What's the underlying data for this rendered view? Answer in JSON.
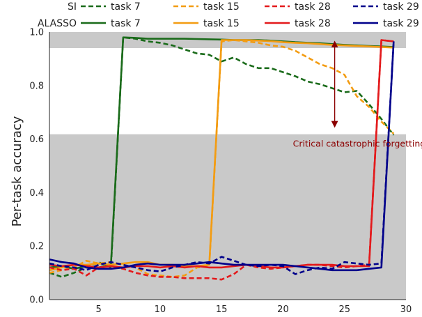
{
  "chart_data": {
    "type": "line",
    "ylabel": "Per-task accuracy",
    "xlabel": "",
    "xlim": [
      1,
      30
    ],
    "ylim": [
      0,
      1.0
    ],
    "xticks": [
      5,
      10,
      15,
      20,
      25,
      30
    ],
    "yticks": [
      0.0,
      0.2,
      0.4,
      0.6,
      0.8,
      1.0
    ],
    "ytick_labels": [
      "0.0",
      "0.2",
      "0.4",
      "0.6",
      "0.8",
      "1.0"
    ],
    "legend": {
      "placement": "top",
      "row_labels": [
        "SI",
        "ALASSO"
      ]
    },
    "bands": [
      {
        "y0": 0.0,
        "y1": 0.618,
        "color": "#c9c9c9"
      },
      {
        "y0": 0.94,
        "y1": 1.0,
        "color": "#c9c9c9"
      }
    ],
    "annotation": {
      "text": "Critical catastrophic forgetting",
      "color": "#8b0000",
      "arrow_x": 24.2,
      "arrow_y": [
        0.655,
        0.955
      ],
      "text_x": 26.2,
      "text_y": 0.572
    },
    "series": [
      {
        "name": "task 7",
        "group": "SI",
        "style": "dashed",
        "color": "#1a6b1a",
        "x": [
          1,
          2,
          3,
          4,
          5,
          6,
          7,
          8,
          9,
          10,
          11,
          12,
          13,
          14,
          15,
          16,
          17,
          18,
          19,
          20,
          21,
          22,
          23,
          24,
          25,
          26,
          27,
          28,
          29
        ],
        "y": [
          0.1,
          0.085,
          0.1,
          0.12,
          0.14,
          0.12,
          0.98,
          0.975,
          0.965,
          0.96,
          0.95,
          0.935,
          0.92,
          0.915,
          0.89,
          0.905,
          0.88,
          0.865,
          0.865,
          0.85,
          0.835,
          0.815,
          0.805,
          0.79,
          0.775,
          0.78,
          0.73,
          0.675,
          0.615
        ]
      },
      {
        "name": "task 7",
        "group": "ALASSO",
        "style": "solid",
        "color": "#1a6b1a",
        "x": [
          1,
          2,
          3,
          4,
          5,
          6,
          7,
          8,
          9,
          10,
          11,
          12,
          13,
          14,
          15,
          16,
          17,
          18,
          19,
          20,
          21,
          22,
          23,
          24,
          25,
          26,
          27,
          28,
          29
        ],
        "y": [
          0.12,
          0.125,
          0.115,
          0.125,
          0.12,
          0.13,
          0.98,
          0.978,
          0.975,
          0.975,
          0.975,
          0.975,
          0.974,
          0.973,
          0.972,
          0.97,
          0.97,
          0.97,
          0.968,
          0.965,
          0.962,
          0.96,
          0.958,
          0.955,
          0.952,
          0.95,
          0.948,
          0.946,
          0.944
        ]
      },
      {
        "name": "task 15",
        "group": "SI",
        "style": "dashed",
        "color": "#f39c12",
        "x": [
          1,
          2,
          3,
          4,
          5,
          6,
          7,
          8,
          9,
          10,
          11,
          12,
          13,
          14,
          15,
          16,
          17,
          18,
          19,
          20,
          21,
          22,
          23,
          24,
          25,
          26,
          27,
          28,
          29
        ],
        "y": [
          0.1,
          0.11,
          0.12,
          0.145,
          0.135,
          0.14,
          0.13,
          0.12,
          0.095,
          0.09,
          0.085,
          0.09,
          0.12,
          0.125,
          0.965,
          0.97,
          0.965,
          0.96,
          0.95,
          0.945,
          0.93,
          0.905,
          0.88,
          0.865,
          0.84,
          0.76,
          0.72,
          0.665,
          0.62
        ]
      },
      {
        "name": "task 15",
        "group": "ALASSO",
        "style": "solid",
        "color": "#f39c12",
        "x": [
          1,
          2,
          3,
          4,
          5,
          6,
          7,
          8,
          9,
          10,
          11,
          12,
          13,
          14,
          15,
          16,
          17,
          18,
          19,
          20,
          21,
          22,
          23,
          24,
          25,
          26,
          27,
          28,
          29
        ],
        "y": [
          0.11,
          0.12,
          0.13,
          0.13,
          0.135,
          0.13,
          0.135,
          0.14,
          0.14,
          0.13,
          0.13,
          0.125,
          0.125,
          0.13,
          0.97,
          0.97,
          0.97,
          0.968,
          0.966,
          0.962,
          0.96,
          0.958,
          0.955,
          0.952,
          0.95,
          0.948,
          0.946,
          0.944,
          0.942
        ]
      },
      {
        "name": "task 28",
        "group": "SI",
        "style": "dashed",
        "color": "#e31a1c",
        "x": [
          1,
          2,
          3,
          4,
          5,
          6,
          7,
          8,
          9,
          10,
          11,
          12,
          13,
          14,
          15,
          16,
          17,
          18,
          19,
          20,
          21,
          22,
          23,
          24,
          25,
          26,
          27,
          28,
          29
        ],
        "y": [
          0.12,
          0.11,
          0.115,
          0.09,
          0.12,
          0.125,
          0.115,
          0.1,
          0.09,
          0.085,
          0.085,
          0.08,
          0.08,
          0.08,
          0.075,
          0.095,
          0.13,
          0.12,
          0.115,
          0.12,
          0.125,
          0.13,
          0.13,
          0.125,
          0.12,
          0.125,
          0.13,
          0.97,
          0.965
        ]
      },
      {
        "name": "task 28",
        "group": "ALASSO",
        "style": "solid",
        "color": "#e31a1c",
        "x": [
          1,
          2,
          3,
          4,
          5,
          6,
          7,
          8,
          9,
          10,
          11,
          12,
          13,
          14,
          15,
          16,
          17,
          18,
          19,
          20,
          21,
          22,
          23,
          24,
          25,
          26,
          27,
          28,
          29
        ],
        "y": [
          0.13,
          0.125,
          0.13,
          0.125,
          0.12,
          0.125,
          0.12,
          0.125,
          0.125,
          0.12,
          0.125,
          0.12,
          0.125,
          0.12,
          0.12,
          0.125,
          0.13,
          0.125,
          0.12,
          0.12,
          0.125,
          0.13,
          0.13,
          0.13,
          0.125,
          0.125,
          0.125,
          0.97,
          0.965
        ]
      },
      {
        "name": "task 29",
        "group": "SI",
        "style": "dashed",
        "color": "#00008b",
        "x": [
          1,
          2,
          3,
          4,
          5,
          6,
          7,
          8,
          9,
          10,
          11,
          12,
          13,
          14,
          15,
          16,
          17,
          18,
          19,
          20,
          21,
          22,
          23,
          24,
          25,
          26,
          27,
          28,
          29
        ],
        "y": [
          0.135,
          0.125,
          0.12,
          0.11,
          0.13,
          0.14,
          0.13,
          0.12,
          0.11,
          0.105,
          0.12,
          0.13,
          0.14,
          0.135,
          0.16,
          0.145,
          0.13,
          0.125,
          0.13,
          0.125,
          0.095,
          0.11,
          0.12,
          0.115,
          0.14,
          0.135,
          0.13,
          0.135,
          0.965
        ]
      },
      {
        "name": "task 29",
        "group": "ALASSO",
        "style": "solid",
        "color": "#00008b",
        "x": [
          1,
          2,
          3,
          4,
          5,
          6,
          7,
          8,
          9,
          10,
          11,
          12,
          13,
          14,
          15,
          16,
          17,
          18,
          19,
          20,
          21,
          22,
          23,
          24,
          25,
          26,
          27,
          28,
          29
        ],
        "y": [
          0.15,
          0.14,
          0.135,
          0.12,
          0.115,
          0.115,
          0.12,
          0.13,
          0.135,
          0.13,
          0.13,
          0.13,
          0.135,
          0.14,
          0.135,
          0.13,
          0.13,
          0.13,
          0.13,
          0.13,
          0.125,
          0.12,
          0.115,
          0.11,
          0.11,
          0.11,
          0.115,
          0.12,
          0.965
        ]
      }
    ]
  }
}
